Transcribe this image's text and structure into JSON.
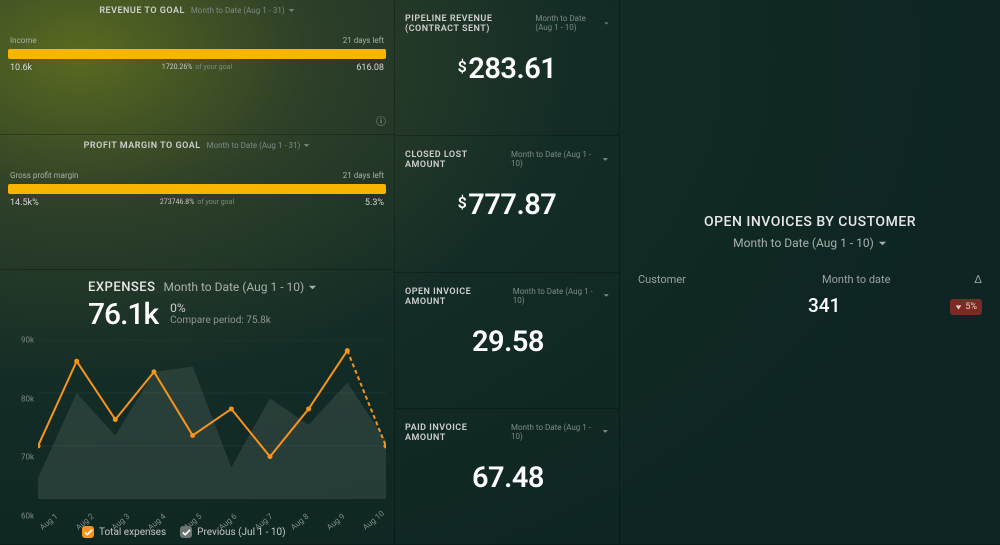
{
  "colors": {
    "accent_orange": "#f7941d",
    "accent_yellow": "#f7b500",
    "text_primary": "#ffffff",
    "text_secondary": "#a8b0ac",
    "text_muted": "#7d8a86",
    "bg_gradient_from": "#5a6a20",
    "bg_gradient_to": "#0e2523",
    "delta_bad_bg": "#7a2b24",
    "delta_bad_fg": "#f2cfc9",
    "grid_line": "rgba(255,255,255,0.05)",
    "area_fill": "rgba(120,130,125,0.25)"
  },
  "revenue_to_goal": {
    "title": "REVENUE TO GOAL",
    "period": "Month to Date (Aug 1 - 31)",
    "metric_label": "Income",
    "days_left": "21 days left",
    "start_value": "10.6k",
    "end_value": "616.08",
    "pct_label": "1720.26%",
    "pct_suffix": "of your goal",
    "bar_fill_pct": 100,
    "bar_color": "#f7b500"
  },
  "profit_to_goal": {
    "title": "PROFIT MARGIN TO GOAL",
    "period": "Month to Date (Aug 1 - 31)",
    "metric_label": "Gross profit margin",
    "days_left": "21 days left",
    "start_value": "14.5k%",
    "end_value": "5.3%",
    "pct_label": "273746.8%",
    "pct_suffix": "of your goal",
    "bar_fill_pct": 100,
    "bar_color": "#f7b500"
  },
  "kpi_pipeline": {
    "title": "PIPELINE REVENUE (CONTRACT SENT)",
    "period": "Month to Date (Aug 1 - 10)",
    "currency": "$",
    "value": "283.61"
  },
  "kpi_closed_lost": {
    "title": "CLOSED LOST AMOUNT",
    "period": "Month to Date (Aug 1 - 10)",
    "currency": "$",
    "value": "777.87"
  },
  "kpi_open_invoice": {
    "title": "OPEN INVOICE AMOUNT",
    "period": "Month to Date (Aug 1 - 10)",
    "currency": "",
    "value": "29.58"
  },
  "kpi_paid_invoice": {
    "title": "PAID INVOICE AMOUNT",
    "period": "Month to Date (Aug 1 - 10)",
    "currency": "",
    "value": "67.48"
  },
  "expenses": {
    "title": "EXPENSES",
    "period": "Month to Date (Aug 1 - 10)",
    "value": "76.1k",
    "delta": "0%",
    "compare_label": "Compare period: 75.8k",
    "chart": {
      "type": "line",
      "y_min": 60,
      "y_max": 90,
      "y_step": 10,
      "y_tick_suffix": "k",
      "x_labels": [
        "Aug 1",
        "Aug 2",
        "Aug 3",
        "Aug 4",
        "Aug 5",
        "Aug 6",
        "Aug 7",
        "Aug 8",
        "Aug 9",
        "Aug 10"
      ],
      "series_current": {
        "label": "Total expenses",
        "color": "#f7941d",
        "stroke_width": 2,
        "values": [
          70,
          86,
          75,
          84,
          72,
          77,
          68,
          77,
          88,
          70
        ],
        "last_segment_dashed": true
      },
      "series_previous": {
        "label": "Previous (Jul 1 - 10)",
        "color": "rgba(150,160,155,0.35)",
        "fill": "rgba(120,130,125,0.22)",
        "values": [
          64,
          80,
          72,
          84,
          85,
          66,
          79,
          74,
          82,
          71
        ]
      },
      "legend_current_checked": true,
      "legend_previous_checked": true
    }
  },
  "open_invoices": {
    "title": "OPEN INVOICES BY CUSTOMER",
    "period": "Month to Date (Aug 1 - 10)",
    "columns": {
      "c1": "Customer",
      "c2": "Month to date",
      "c3": "Δ"
    },
    "rows": [
      {
        "customer": "",
        "value": "341",
        "delta": "5%",
        "delta_dir": "down"
      }
    ]
  }
}
